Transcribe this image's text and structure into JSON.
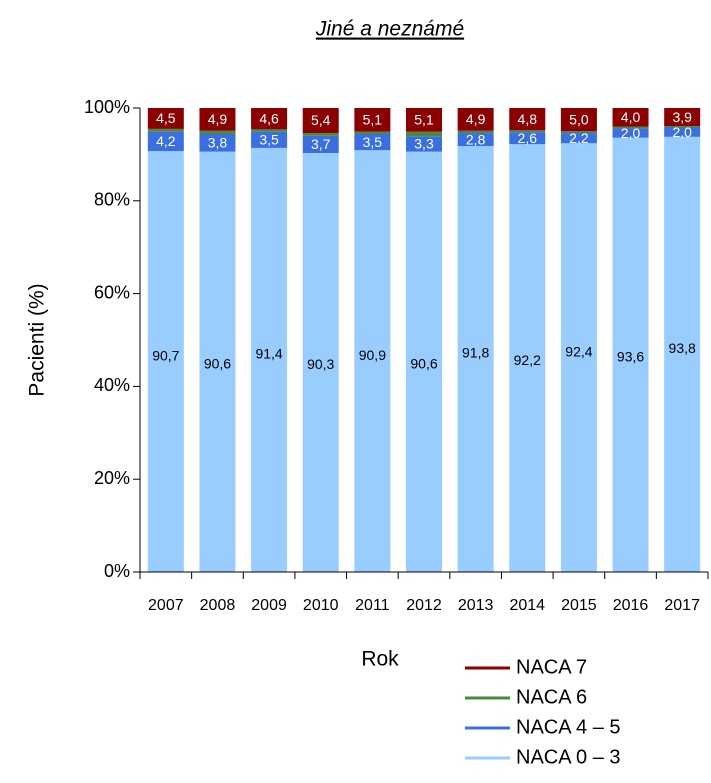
{
  "chart_data": {
    "type": "stacked_bar",
    "title": "Jiné a neznámé",
    "x_label": "Rok",
    "y_label": "Pacienti (%)",
    "categories": [
      "2007",
      "2008",
      "2009",
      "2010",
      "2011",
      "2012",
      "2013",
      "2014",
      "2015",
      "2016",
      "2017"
    ],
    "series": [
      {
        "name": "NACA 0 – 3",
        "color": "#99ccff",
        "values": [
          90.7,
          90.6,
          91.4,
          90.3,
          90.9,
          90.6,
          91.8,
          92.2,
          92.4,
          93.6,
          93.8
        ],
        "value_labels": [
          "90,7",
          "90,6",
          "91,4",
          "90,3",
          "90,9",
          "90,6",
          "91,8",
          "92,2",
          "92,4",
          "93,6",
          "93,8"
        ]
      },
      {
        "name": "NACA 4 – 5",
        "color": "#3a6fe0",
        "values": [
          4.2,
          3.8,
          3.5,
          3.7,
          3.5,
          3.3,
          2.8,
          2.6,
          2.2,
          2.0,
          2.0
        ],
        "value_labels": [
          "4,2",
          "3,8",
          "3,5",
          "3,7",
          "3,5",
          "3,3",
          "2,8",
          "2,6",
          "2,2",
          "2,0",
          "2,0"
        ]
      },
      {
        "name": "NACA 6",
        "color": "#4a8a3a",
        "values": [
          0.6,
          0.7,
          0.5,
          0.6,
          0.5,
          1.0,
          0.5,
          0.4,
          0.4,
          0.4,
          0.3
        ]
      },
      {
        "name": "NACA 7",
        "color": "#8b0000",
        "values": [
          4.5,
          4.9,
          4.6,
          5.4,
          5.1,
          5.1,
          4.9,
          4.8,
          5.0,
          4.0,
          3.9
        ],
        "value_labels": [
          "4,5",
          "4,9",
          "4,6",
          "5,4",
          "5,1",
          "5,1",
          "4,9",
          "4,8",
          "5,0",
          "4,0",
          "3,9"
        ]
      }
    ],
    "ylim": [
      0,
      100
    ],
    "yticks": [
      {
        "value": 0,
        "label": "0%"
      },
      {
        "value": 20,
        "label": "20%"
      },
      {
        "value": 40,
        "label": "40%"
      },
      {
        "value": 60,
        "label": "60%"
      },
      {
        "value": 80,
        "label": "80%"
      },
      {
        "value": 100,
        "label": "100%"
      }
    ]
  }
}
